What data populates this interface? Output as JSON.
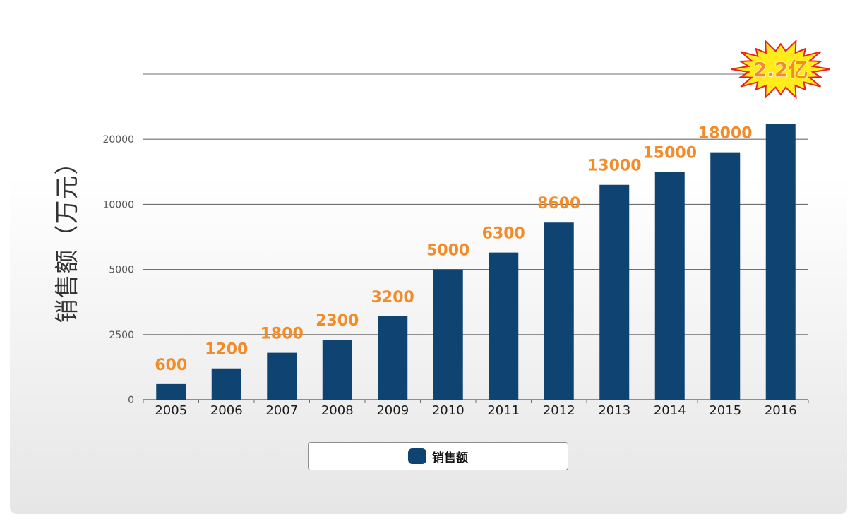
{
  "colors": {
    "bar": "#0f4472",
    "value_label": "#f28c28",
    "burst_fill": "#ffec1a",
    "burst_stroke": "#e8231e",
    "burst_text": "#f28c28",
    "gridline": "#6f6f6f"
  },
  "chart_data": {
    "type": "bar",
    "ylabel": "销售额（万元）",
    "xlabel": "",
    "categories": [
      "2005",
      "2006",
      "2007",
      "2008",
      "2009",
      "2010",
      "2011",
      "2012",
      "2013",
      "2014",
      "2015",
      "2016"
    ],
    "series": [
      {
        "name": "销售额",
        "values": [
          600,
          1200,
          1800,
          2300,
          3200,
          5000,
          6300,
          8600,
          13000,
          15000,
          18000,
          22000
        ],
        "value_labels": [
          "600",
          "1200",
          "1800",
          "2300",
          "3200",
          "5000",
          "6300",
          "8600",
          "13000",
          "15000",
          "18000",
          ""
        ]
      }
    ],
    "yticks": [
      {
        "value": 0,
        "label": "0"
      },
      {
        "value": 2500,
        "label": "2500"
      },
      {
        "value": 5000,
        "label": "5000"
      },
      {
        "value": 10000,
        "label": "10000"
      },
      {
        "value": 20000,
        "label": "20000"
      },
      {
        "value": null,
        "label": ""
      }
    ],
    "grid": true,
    "legend_position": "bottom",
    "highlight": {
      "category": "2016",
      "text": "2.2亿",
      "shape": "starburst"
    }
  }
}
